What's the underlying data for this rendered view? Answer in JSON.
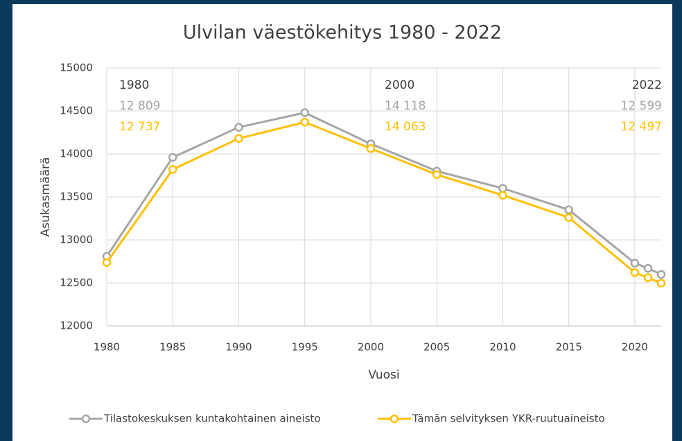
{
  "chart_data": {
    "type": "line",
    "title": "Ulvilan väestökehitys 1980 - 2022",
    "x_label": "Vuosi",
    "y_label": "Asukasmäärä",
    "x": [
      1980,
      1985,
      1990,
      1995,
      2000,
      2005,
      2010,
      2015,
      2020,
      2021,
      2022
    ],
    "series": [
      {
        "name": "Tilastokeskuksen kuntakohtainen aineisto",
        "color": "#a5a5a5",
        "values": [
          12809,
          13960,
          14310,
          14480,
          14118,
          13800,
          13600,
          13350,
          12730,
          12670,
          12599
        ]
      },
      {
        "name": "Tämän selvityksen YKR-ruutuaineisto",
        "color": "#ffc000",
        "values": [
          12737,
          13820,
          14180,
          14370,
          14063,
          13760,
          13520,
          13260,
          12620,
          12560,
          12497
        ]
      }
    ],
    "xlim": [
      1980,
      2022
    ],
    "xticks": [
      1980,
      1985,
      1990,
      1995,
      2000,
      2005,
      2010,
      2015,
      2020
    ],
    "ylim": [
      12000,
      15000
    ],
    "yticks": [
      12000,
      12500,
      13000,
      13500,
      14000,
      14500,
      15000
    ],
    "grid": true,
    "legend": "bottom",
    "annotations": [
      {
        "year": "1980",
        "labels": [
          "12 809",
          "12 737"
        ]
      },
      {
        "year": "2000",
        "labels": [
          "14 118",
          "14 063"
        ]
      },
      {
        "year": "2022",
        "labels": [
          "12 599",
          "12 497"
        ]
      }
    ]
  }
}
